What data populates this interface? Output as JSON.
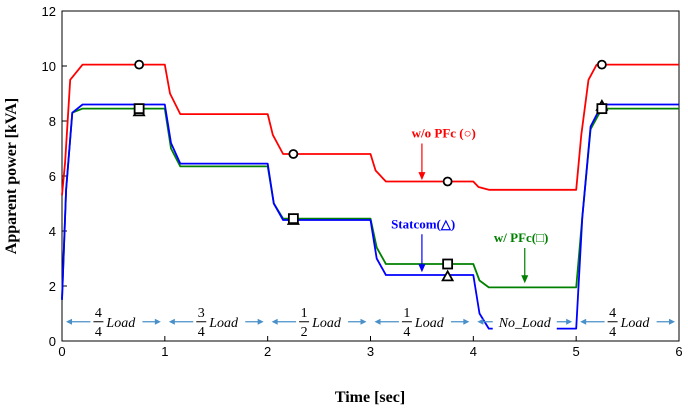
{
  "chart_data": {
    "type": "line",
    "xlabel": "Time [sec]",
    "ylabel": "Apparent power [kVA]",
    "xlim": [
      0,
      6
    ],
    "ylim": [
      0,
      12
    ],
    "x_ticks": [
      "0",
      "1",
      "2",
      "3",
      "4",
      "5",
      "6"
    ],
    "y_ticks": [
      "0",
      "2",
      "4",
      "6",
      "8",
      "10",
      "12"
    ],
    "grid": false,
    "series": [
      {
        "name": "w/o PFc (○)",
        "color": "#ff0000",
        "x": [
          0,
          0.03,
          0.08,
          0.2,
          1.0,
          1.05,
          1.15,
          2.0,
          2.05,
          2.15,
          3.0,
          3.05,
          3.15,
          4.0,
          4.05,
          4.15,
          5.0,
          5.05,
          5.12,
          5.2,
          6.0
        ],
        "y": [
          5.3,
          6.5,
          9.5,
          10.05,
          10.05,
          9.0,
          8.25,
          8.25,
          7.5,
          6.8,
          6.8,
          6.2,
          5.8,
          5.8,
          5.6,
          5.5,
          5.5,
          7.5,
          9.5,
          10.05,
          10.05
        ],
        "marker": "circle",
        "markers_x": [
          0.75,
          2.25,
          3.75,
          5.25
        ],
        "markers_y": [
          10.05,
          6.8,
          5.8,
          10.05
        ]
      },
      {
        "name": "Statcom(△)",
        "color": "#0000ff",
        "x": [
          0,
          0.04,
          0.1,
          0.2,
          1.0,
          1.06,
          1.15,
          2.0,
          2.06,
          2.15,
          3.0,
          3.06,
          3.15,
          4.0,
          4.06,
          4.15,
          5.0,
          5.06,
          5.14,
          5.25,
          6.0
        ],
        "y": [
          1.5,
          5.5,
          8.3,
          8.6,
          8.6,
          7.2,
          6.45,
          6.45,
          5.0,
          4.4,
          4.4,
          3.0,
          2.4,
          2.4,
          1.0,
          0.45,
          0.45,
          4.5,
          7.8,
          8.6,
          8.6
        ],
        "marker": "triangle",
        "markers_x": [
          0.75,
          2.25,
          3.75,
          5.25
        ],
        "markers_y": [
          8.35,
          4.4,
          2.35,
          8.55
        ]
      },
      {
        "name": "w/ PFc(□)",
        "color": "#008000",
        "x": [
          0,
          0.04,
          0.1,
          0.2,
          1.0,
          1.06,
          1.15,
          2.0,
          2.06,
          2.15,
          3.0,
          3.06,
          3.15,
          4.0,
          4.06,
          4.15,
          5.0,
          5.06,
          5.14,
          5.25,
          6.0
        ],
        "y": [
          1.5,
          5.5,
          8.3,
          8.45,
          8.45,
          7.0,
          6.35,
          6.35,
          5.0,
          4.45,
          4.45,
          3.4,
          2.8,
          2.8,
          2.2,
          1.95,
          1.95,
          4.5,
          7.7,
          8.45,
          8.45
        ],
        "marker": "square",
        "markers_x": [
          0.75,
          2.25,
          3.75,
          5.25
        ],
        "markers_y": [
          8.45,
          4.45,
          2.8,
          8.45
        ]
      }
    ],
    "annotations": [
      {
        "text": "w/o PFc (○)",
        "color": "#ff0000",
        "x": 3.4,
        "y": 7.4
      },
      {
        "text": "Statcom(△)",
        "color": "#0000ff",
        "x": 3.2,
        "y": 4.1
      },
      {
        "text": "w/ PFc(□)",
        "color": "#008000",
        "x": 4.2,
        "y": 3.6
      }
    ],
    "segments": [
      {
        "num": "4",
        "den": "4",
        "label": "Load",
        "x_from": 0,
        "x_to": 1
      },
      {
        "num": "3",
        "den": "4",
        "label": "Load",
        "x_from": 1,
        "x_to": 2
      },
      {
        "num": "1",
        "den": "2",
        "label": "Load",
        "x_from": 2,
        "x_to": 3
      },
      {
        "num": "1",
        "den": "4",
        "label": "Load",
        "x_from": 3,
        "x_to": 4
      },
      {
        "num": "",
        "den": "",
        "label": "No_Load",
        "x_from": 4,
        "x_to": 5
      },
      {
        "num": "4",
        "den": "4",
        "label": "Load",
        "x_from": 5,
        "x_to": 6
      }
    ]
  }
}
